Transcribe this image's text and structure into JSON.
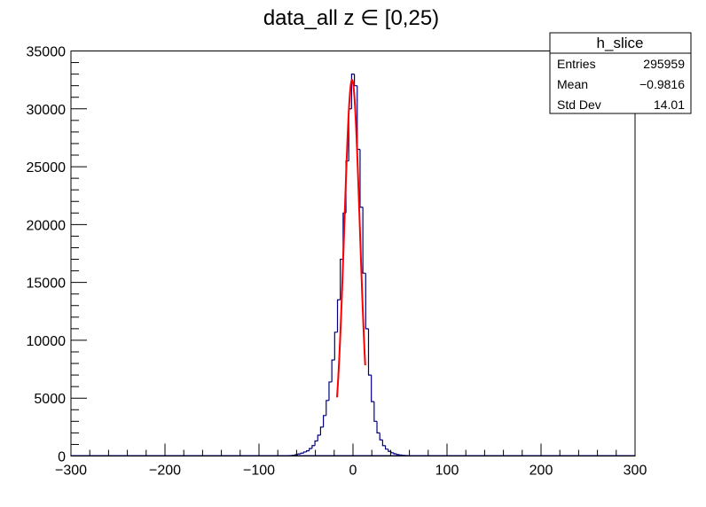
{
  "chart_data": {
    "type": "histogram",
    "title": "data_all z  ∈ [0,25)",
    "xlabel": "",
    "ylabel": "",
    "xlim": [
      -300,
      300
    ],
    "ylim": [
      0,
      35000
    ],
    "x_ticks": [
      -300,
      -200,
      -100,
      0,
      100,
      200,
      300
    ],
    "x_tick_labels": [
      "−300",
      "−200",
      "−100",
      "0",
      "100",
      "200",
      "300"
    ],
    "y_ticks": [
      0,
      5000,
      10000,
      15000,
      20000,
      25000,
      30000,
      35000
    ],
    "y_tick_labels": [
      "0",
      "5000",
      "10000",
      "15000",
      "20000",
      "25000",
      "30000",
      "35000"
    ],
    "grid": false,
    "colors": {
      "histogram": "#00007f",
      "fit": "#ff0000",
      "frame": "#000000"
    },
    "stats_box": {
      "title": "h_slice",
      "rows": [
        {
          "label": "Entries",
          "value": "295959"
        },
        {
          "label": "Mean",
          "value": "−0.9816"
        },
        {
          "label": "Std Dev",
          "value": "14.01"
        }
      ]
    },
    "histogram": {
      "bin_width": 3,
      "bins": [
        {
          "x": -69,
          "y": 20
        },
        {
          "x": -66,
          "y": 40
        },
        {
          "x": -63,
          "y": 70
        },
        {
          "x": -60,
          "y": 120
        },
        {
          "x": -57,
          "y": 180
        },
        {
          "x": -54,
          "y": 250
        },
        {
          "x": -51,
          "y": 350
        },
        {
          "x": -48,
          "y": 450
        },
        {
          "x": -45,
          "y": 650
        },
        {
          "x": -42,
          "y": 900
        },
        {
          "x": -39,
          "y": 1300
        },
        {
          "x": -36,
          "y": 1800
        },
        {
          "x": -33,
          "y": 2500
        },
        {
          "x": -30,
          "y": 3500
        },
        {
          "x": -27,
          "y": 4800
        },
        {
          "x": -24,
          "y": 6400
        },
        {
          "x": -21,
          "y": 8300
        },
        {
          "x": -18,
          "y": 10700
        },
        {
          "x": -15,
          "y": 13500
        },
        {
          "x": -12,
          "y": 17000
        },
        {
          "x": -9,
          "y": 21000
        },
        {
          "x": -6,
          "y": 25500
        },
        {
          "x": -3,
          "y": 30000
        },
        {
          "x": 0,
          "y": 33000
        },
        {
          "x": 3,
          "y": 32000
        },
        {
          "x": 6,
          "y": 26500
        },
        {
          "x": 9,
          "y": 21500
        },
        {
          "x": 12,
          "y": 15800
        },
        {
          "x": 15,
          "y": 11000
        },
        {
          "x": 18,
          "y": 7000
        },
        {
          "x": 21,
          "y": 4700
        },
        {
          "x": 24,
          "y": 3000
        },
        {
          "x": 27,
          "y": 2000
        },
        {
          "x": 30,
          "y": 1400
        },
        {
          "x": 33,
          "y": 900
        },
        {
          "x": 36,
          "y": 600
        },
        {
          "x": 39,
          "y": 400
        },
        {
          "x": 42,
          "y": 280
        },
        {
          "x": 45,
          "y": 190
        },
        {
          "x": 48,
          "y": 130
        },
        {
          "x": 51,
          "y": 90
        },
        {
          "x": 54,
          "y": 60
        },
        {
          "x": 57,
          "y": 40
        },
        {
          "x": 60,
          "y": 25
        },
        {
          "x": 63,
          "y": 15
        }
      ]
    },
    "fit": {
      "type": "gaussian",
      "x_range": [
        -17,
        13
      ],
      "amplitude": 32500,
      "mean": -1,
      "sigma": 8.3
    }
  }
}
